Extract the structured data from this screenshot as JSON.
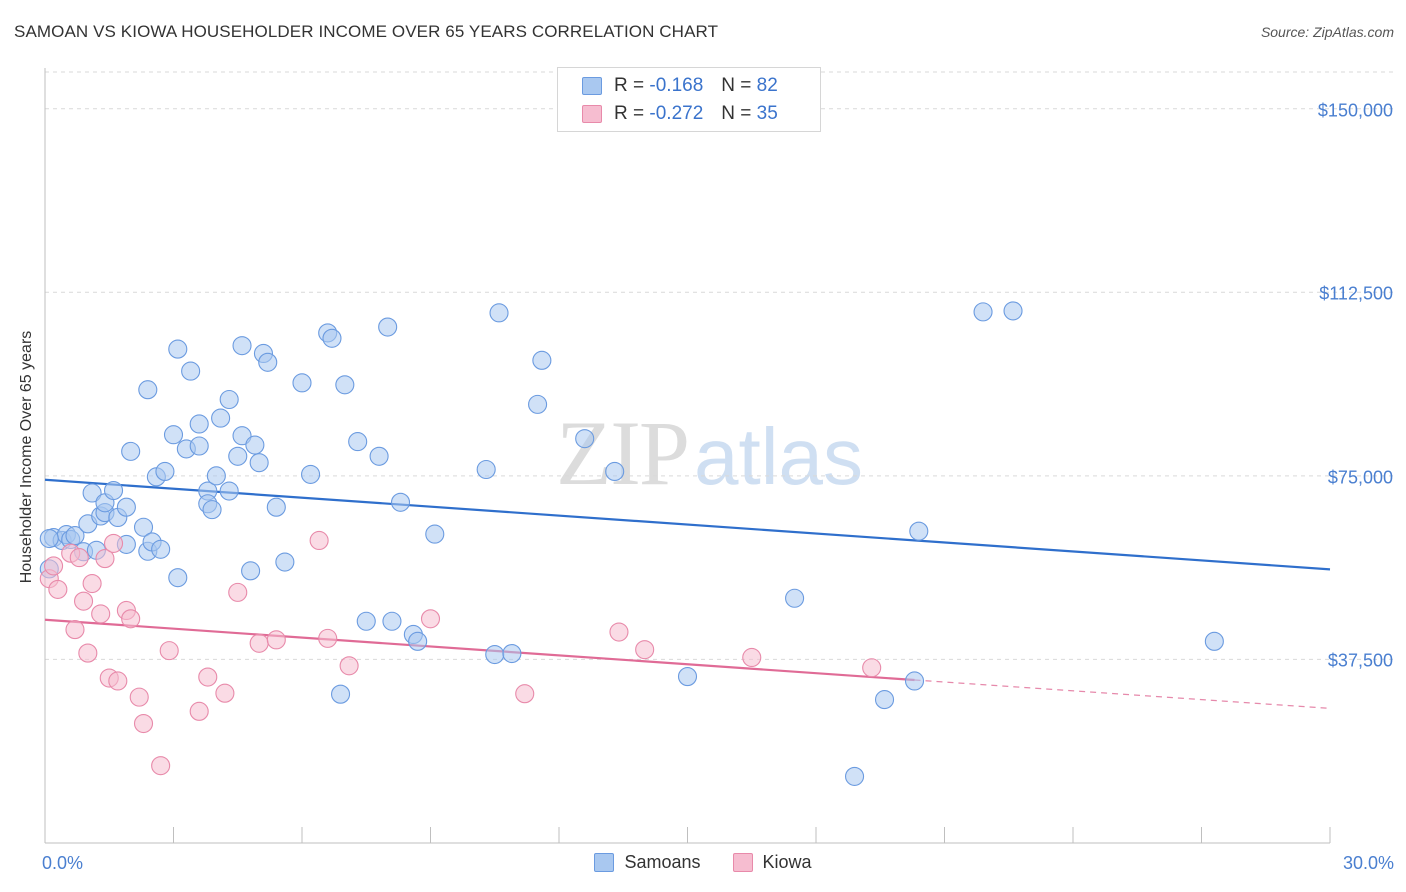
{
  "title": "SAMOAN VS KIOWA HOUSEHOLDER INCOME OVER 65 YEARS CORRELATION CHART",
  "source": "Source: ZipAtlas.com",
  "watermark": {
    "zip": "ZIP",
    "atlas": "atlas"
  },
  "colors": {
    "samoans_fill": "#a9c8f0",
    "samoans_stroke": "#6b9be0",
    "samoans_line": "#2f6fcc",
    "kiowa_fill": "#f6bdd0",
    "kiowa_stroke": "#e88aaa",
    "kiowa_line": "#e06b96",
    "grid": "#d9d9d9",
    "axis": "#bfbfbf",
    "tick_text": "#4a7fd0"
  },
  "legend_top": [
    {
      "r_label": "R =",
      "r_value": "-0.168",
      "n_label": "N =",
      "n_value": "82"
    },
    {
      "r_label": "R =",
      "r_value": "-0.272",
      "n_label": "N =",
      "n_value": "35"
    }
  ],
  "legend_bottom": [
    "Samoans",
    "Kiowa"
  ],
  "chart_data": {
    "type": "scatter",
    "title": "SAMOAN VS KIOWA HOUSEHOLDER INCOME OVER 65 YEARS CORRELATION CHART",
    "xlabel": "",
    "ylabel": "Householder Income Over 65 years",
    "xlim": [
      0,
      30
    ],
    "ylim": [
      0,
      157500
    ],
    "x_tick_labels": [
      "0.0%",
      "30.0%"
    ],
    "y_ticks": [
      37500,
      75000,
      112500,
      150000
    ],
    "y_tick_labels": [
      "$37,500",
      "$75,000",
      "$112,500",
      "$150,000"
    ],
    "grid": true,
    "legend_position": "top-center",
    "series": [
      {
        "name": "Samoans",
        "r": -0.168,
        "n": 82,
        "trend": {
          "x0": 0,
          "y0": 74200,
          "x1": 30,
          "y1": 55900
        },
        "points": [
          [
            0.2,
            62400
          ],
          [
            0.4,
            61800
          ],
          [
            0.5,
            63000
          ],
          [
            0.6,
            62000
          ],
          [
            0.7,
            62800
          ],
          [
            0.9,
            59500
          ],
          [
            1.0,
            65200
          ],
          [
            1.1,
            71500
          ],
          [
            1.2,
            59800
          ],
          [
            1.3,
            66800
          ],
          [
            1.4,
            67500
          ],
          [
            1.4,
            69500
          ],
          [
            1.6,
            72000
          ],
          [
            1.7,
            66500
          ],
          [
            1.9,
            68600
          ],
          [
            1.9,
            61000
          ],
          [
            2.0,
            80000
          ],
          [
            2.3,
            64500
          ],
          [
            2.4,
            92600
          ],
          [
            2.4,
            59600
          ],
          [
            2.5,
            61500
          ],
          [
            2.6,
            74800
          ],
          [
            2.7,
            60000
          ],
          [
            2.8,
            75900
          ],
          [
            3.0,
            83400
          ],
          [
            3.1,
            54200
          ],
          [
            3.1,
            100900
          ],
          [
            3.3,
            80500
          ],
          [
            3.4,
            96400
          ],
          [
            3.6,
            85600
          ],
          [
            3.6,
            81100
          ],
          [
            3.8,
            71900
          ],
          [
            3.8,
            69300
          ],
          [
            3.9,
            68100
          ],
          [
            4.0,
            75000
          ],
          [
            4.1,
            86800
          ],
          [
            4.3,
            90600
          ],
          [
            4.3,
            71900
          ],
          [
            4.5,
            79000
          ],
          [
            4.6,
            83200
          ],
          [
            4.6,
            101600
          ],
          [
            4.8,
            55600
          ],
          [
            4.9,
            81300
          ],
          [
            5.0,
            77700
          ],
          [
            5.1,
            100000
          ],
          [
            5.2,
            98200
          ],
          [
            5.4,
            68600
          ],
          [
            5.6,
            57400
          ],
          [
            6.0,
            94000
          ],
          [
            6.2,
            75300
          ],
          [
            6.6,
            104200
          ],
          [
            6.7,
            103100
          ],
          [
            6.9,
            30400
          ],
          [
            7.0,
            93600
          ],
          [
            7.3,
            82000
          ],
          [
            7.5,
            45300
          ],
          [
            7.8,
            79000
          ],
          [
            8.0,
            105400
          ],
          [
            8.1,
            45300
          ],
          [
            8.3,
            69600
          ],
          [
            8.6,
            42600
          ],
          [
            8.7,
            41200
          ],
          [
            9.1,
            63100
          ],
          [
            10.3,
            76300
          ],
          [
            10.5,
            38500
          ],
          [
            10.6,
            108300
          ],
          [
            10.9,
            38700
          ],
          [
            11.5,
            89600
          ],
          [
            11.6,
            98600
          ],
          [
            12.6,
            82600
          ],
          [
            13.3,
            75900
          ],
          [
            15.0,
            34000
          ],
          [
            17.5,
            50000
          ],
          [
            18.9,
            13600
          ],
          [
            19.6,
            29300
          ],
          [
            20.3,
            33100
          ],
          [
            20.4,
            63700
          ],
          [
            21.9,
            108500
          ],
          [
            22.6,
            108700
          ],
          [
            27.3,
            41200
          ],
          [
            0.1,
            62200
          ],
          [
            0.1,
            56000
          ]
        ]
      },
      {
        "name": "Kiowa",
        "r": -0.272,
        "n": 35,
        "trend": {
          "x0": 0,
          "y0": 45600,
          "x1": 20.3,
          "y1": 33300
        },
        "trend_extension": {
          "x0": 20.3,
          "y0": 33300,
          "x1": 30,
          "y1": 27500
        },
        "points": [
          [
            0.1,
            54000
          ],
          [
            0.2,
            56600
          ],
          [
            0.3,
            51800
          ],
          [
            0.6,
            59200
          ],
          [
            0.7,
            43600
          ],
          [
            0.8,
            58300
          ],
          [
            0.9,
            49400
          ],
          [
            1.0,
            38800
          ],
          [
            1.1,
            53000
          ],
          [
            1.3,
            46800
          ],
          [
            1.4,
            58100
          ],
          [
            1.5,
            33700
          ],
          [
            1.6,
            61200
          ],
          [
            1.7,
            33100
          ],
          [
            1.9,
            47500
          ],
          [
            2.0,
            45800
          ],
          [
            2.2,
            29800
          ],
          [
            2.3,
            24400
          ],
          [
            2.7,
            15800
          ],
          [
            2.9,
            39300
          ],
          [
            3.6,
            26900
          ],
          [
            3.8,
            33900
          ],
          [
            4.2,
            30600
          ],
          [
            4.5,
            51200
          ],
          [
            5.0,
            40800
          ],
          [
            5.4,
            41500
          ],
          [
            6.4,
            61800
          ],
          [
            6.6,
            41800
          ],
          [
            7.1,
            36200
          ],
          [
            9.0,
            45800
          ],
          [
            11.2,
            30500
          ],
          [
            13.4,
            43100
          ],
          [
            14.0,
            39500
          ],
          [
            16.5,
            37900
          ],
          [
            19.3,
            35800
          ]
        ]
      }
    ]
  }
}
